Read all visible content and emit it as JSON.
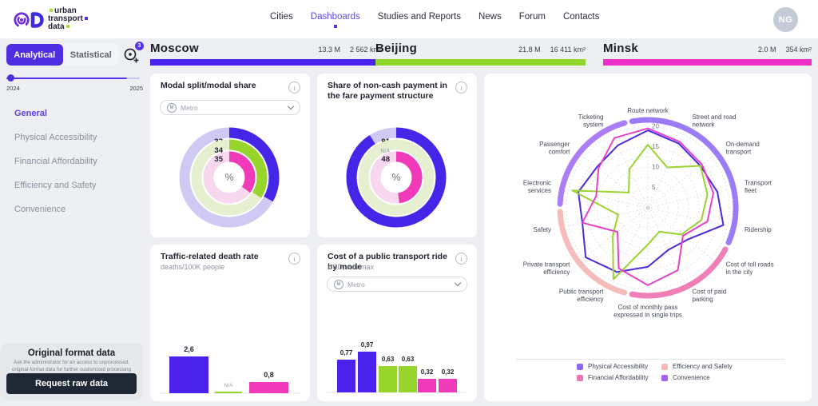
{
  "brand": {
    "line1": "urban",
    "line2": "transport",
    "line3": "data"
  },
  "nav": {
    "items": [
      {
        "label": "Cities",
        "active": false
      },
      {
        "label": "Dashboards",
        "active": true
      },
      {
        "label": "Studies and Reports",
        "active": false
      },
      {
        "label": "News",
        "active": false
      },
      {
        "label": "Forum",
        "active": false
      },
      {
        "label": "Contacts",
        "active": false
      }
    ],
    "avatar": "NG"
  },
  "sidebar": {
    "tabs": {
      "analytical": "Analytical",
      "statistical": "Statistical"
    },
    "compare_badge": "3",
    "slider": {
      "min": "2024",
      "max": "2025"
    },
    "menu": [
      {
        "label": "General",
        "active": true
      },
      {
        "label": "Physical Accessibility",
        "active": false
      },
      {
        "label": "Financial Affordability",
        "active": false
      },
      {
        "label": "Efficiency and Safety",
        "active": false
      },
      {
        "label": "Convenience",
        "active": false
      }
    ],
    "raw_data": {
      "title": "Original format data",
      "description": "Ask the administrator for an access to unprocessed, original-format data for further customized processing",
      "button": "Request raw data"
    }
  },
  "cities": [
    {
      "name": "Moscow",
      "population": "13.3 M",
      "area": "2 562 km²",
      "color": "#4a22ec"
    },
    {
      "name": "Beijing",
      "population": "21.8 M",
      "area": "16 411 km²",
      "color": "#90d72b"
    },
    {
      "name": "Minsk",
      "population": "2.0 M",
      "area": "354 km²",
      "color": "#ee2fc8"
    }
  ],
  "cards": {
    "modal_split": {
      "title": "Modal split/modal share",
      "dropdown": "Metro"
    },
    "noncash": {
      "title": "Share of non-cash payment in the fare payment structure"
    },
    "death_rate": {
      "title": "Traffic-related death rate",
      "subtitle": "deaths/100K people"
    },
    "ride_cost": {
      "title": "Cost of a public transport ride by mode",
      "subtitle": "USD, min/max",
      "dropdown": "Metro"
    }
  },
  "legend": [
    {
      "label": "Physical Accessibility",
      "color": "#8b68f6"
    },
    {
      "label": "Financial Affordability",
      "color": "#ef75b2"
    },
    {
      "label": "Efficiency and Safety",
      "color": "#f5b8b8"
    },
    {
      "label": "Convenience",
      "color": "#a95ef3"
    }
  ],
  "chart_data": [
    {
      "id": "donut-modal",
      "type": "pie",
      "title": "Modal split/modal share",
      "unit": "%",
      "categories": [
        "Moscow",
        "Beijing",
        "Minsk"
      ],
      "rings": [
        {
          "city": "Moscow",
          "value": 33,
          "label": "33",
          "color": "#4526e9",
          "faded": "#cfc9f4"
        },
        {
          "city": "Beijing",
          "value": 34,
          "label": "34",
          "color": "#98d52c",
          "faded": "#e6efd0"
        },
        {
          "city": "Minsk",
          "value": 35,
          "label": "35",
          "color": "#f13ab9",
          "faded": "#f8d8ee"
        }
      ]
    },
    {
      "id": "donut-noncash",
      "type": "pie",
      "title": "Share of non-cash payment in the fare payment structure",
      "unit": "%",
      "categories": [
        "Moscow",
        "Beijing",
        "Minsk"
      ],
      "rings": [
        {
          "city": "Moscow",
          "value": 91,
          "label": "91",
          "color": "#4526e9",
          "faded": "#cfc9f4"
        },
        {
          "city": "Beijing",
          "value": null,
          "label": "N/A",
          "color": "#98d52c",
          "faded": "#e6efd0"
        },
        {
          "city": "Minsk",
          "value": 48,
          "label": "48",
          "color": "#f13ab9",
          "faded": "#f8d8ee"
        }
      ]
    },
    {
      "id": "bars-death",
      "type": "bar",
      "title": "Traffic-related death rate",
      "ylabel": "deaths/100K people",
      "categories": [
        "Moscow",
        "Beijing",
        "Minsk"
      ],
      "values": [
        2.6,
        null,
        0.8
      ],
      "labels": [
        "2,6",
        "N/A",
        "0,8"
      ],
      "colors": [
        "#4a22ec",
        "#98d52c",
        "#f13ab9"
      ]
    },
    {
      "id": "bars-cost",
      "type": "bar",
      "title": "Cost of a public transport ride by mode",
      "ylabel": "USD, min/max",
      "categories": [
        "Moscow min",
        "Moscow max",
        "Beijing min",
        "Beijing max",
        "Minsk min",
        "Minsk max"
      ],
      "values": [
        0.77,
        0.97,
        0.63,
        0.63,
        0.32,
        0.32
      ],
      "labels": [
        "0,77",
        "0,97",
        "0,63",
        "0,63",
        "0,32",
        "0,32"
      ],
      "colors": [
        "#4a22ec",
        "#4a22ec",
        "#98d52c",
        "#98d52c",
        "#f13ab9",
        "#f13ab9"
      ]
    },
    {
      "id": "radar",
      "type": "radar",
      "max": 20,
      "ticks": [
        5,
        10,
        15,
        20
      ],
      "categories": [
        "Route network",
        "Street and road network",
        "On-demand transport",
        "Transport fleet",
        "Ridership",
        "Cost of toll roads in the city",
        "Cost of paid parking",
        "Cost of monthly pass expressed in single trips",
        "Public transport efficiency",
        "Private transport efficiency",
        "Safety",
        "Electronic services",
        "Passenger comfort",
        "Ticketing system"
      ],
      "label_lines": [
        [
          "Route network"
        ],
        [
          "Street and road",
          "network"
        ],
        [
          "On-demand",
          "transport"
        ],
        [
          "Transport",
          "fleet"
        ],
        [
          "Ridership"
        ],
        [
          "Cost of toll roads",
          "in the city"
        ],
        [
          "Cost of paid",
          "parking"
        ],
        [
          "Cost of monthly pass",
          "expressed in single trips"
        ],
        [
          "Public transport",
          "efficiency"
        ],
        [
          "Private transport",
          "efficiency"
        ],
        [
          "Safety"
        ],
        [
          "Electronic",
          "services"
        ],
        [
          "Passenger",
          "comfort"
        ],
        [
          "Ticketing",
          "system"
        ]
      ],
      "series": [
        {
          "name": "Moscow",
          "color": "#4a2be0",
          "values": [
            19,
            17.5,
            16.5,
            17.5,
            19,
            12.5,
            11.5,
            14.5,
            17.5,
            19.5,
            16.5,
            17.5,
            16,
            17
          ]
        },
        {
          "name": "Beijing",
          "color": "#9ad32e",
          "values": [
            15.5,
            11,
            16.5,
            15,
            13.5,
            10.5,
            6.5,
            9,
            19.5,
            11,
            7.5,
            19,
            6,
            10.5
          ]
        },
        {
          "name": "Minsk",
          "color": "#e642c5",
          "values": [
            19.5,
            18,
            17,
            16.5,
            15,
            11,
            17,
            19,
            16.5,
            9.5,
            16.5,
            13,
            15.5,
            19
          ]
        }
      ],
      "groups": [
        {
          "label": "Physical Accessibility",
          "color": "#9b7cf8",
          "from": 0,
          "to": 4
        },
        {
          "label": "Financial Affordability",
          "color": "#f07fb7",
          "from": 5,
          "to": 7
        },
        {
          "label": "Efficiency and Safety",
          "color": "#f6bcbc",
          "from": 8,
          "to": 10
        },
        {
          "label": "Convenience",
          "color": "#ab7ef5",
          "from": 11,
          "to": 13
        }
      ],
      "legend_position": "bottom-right",
      "grid": "dashed"
    }
  ]
}
